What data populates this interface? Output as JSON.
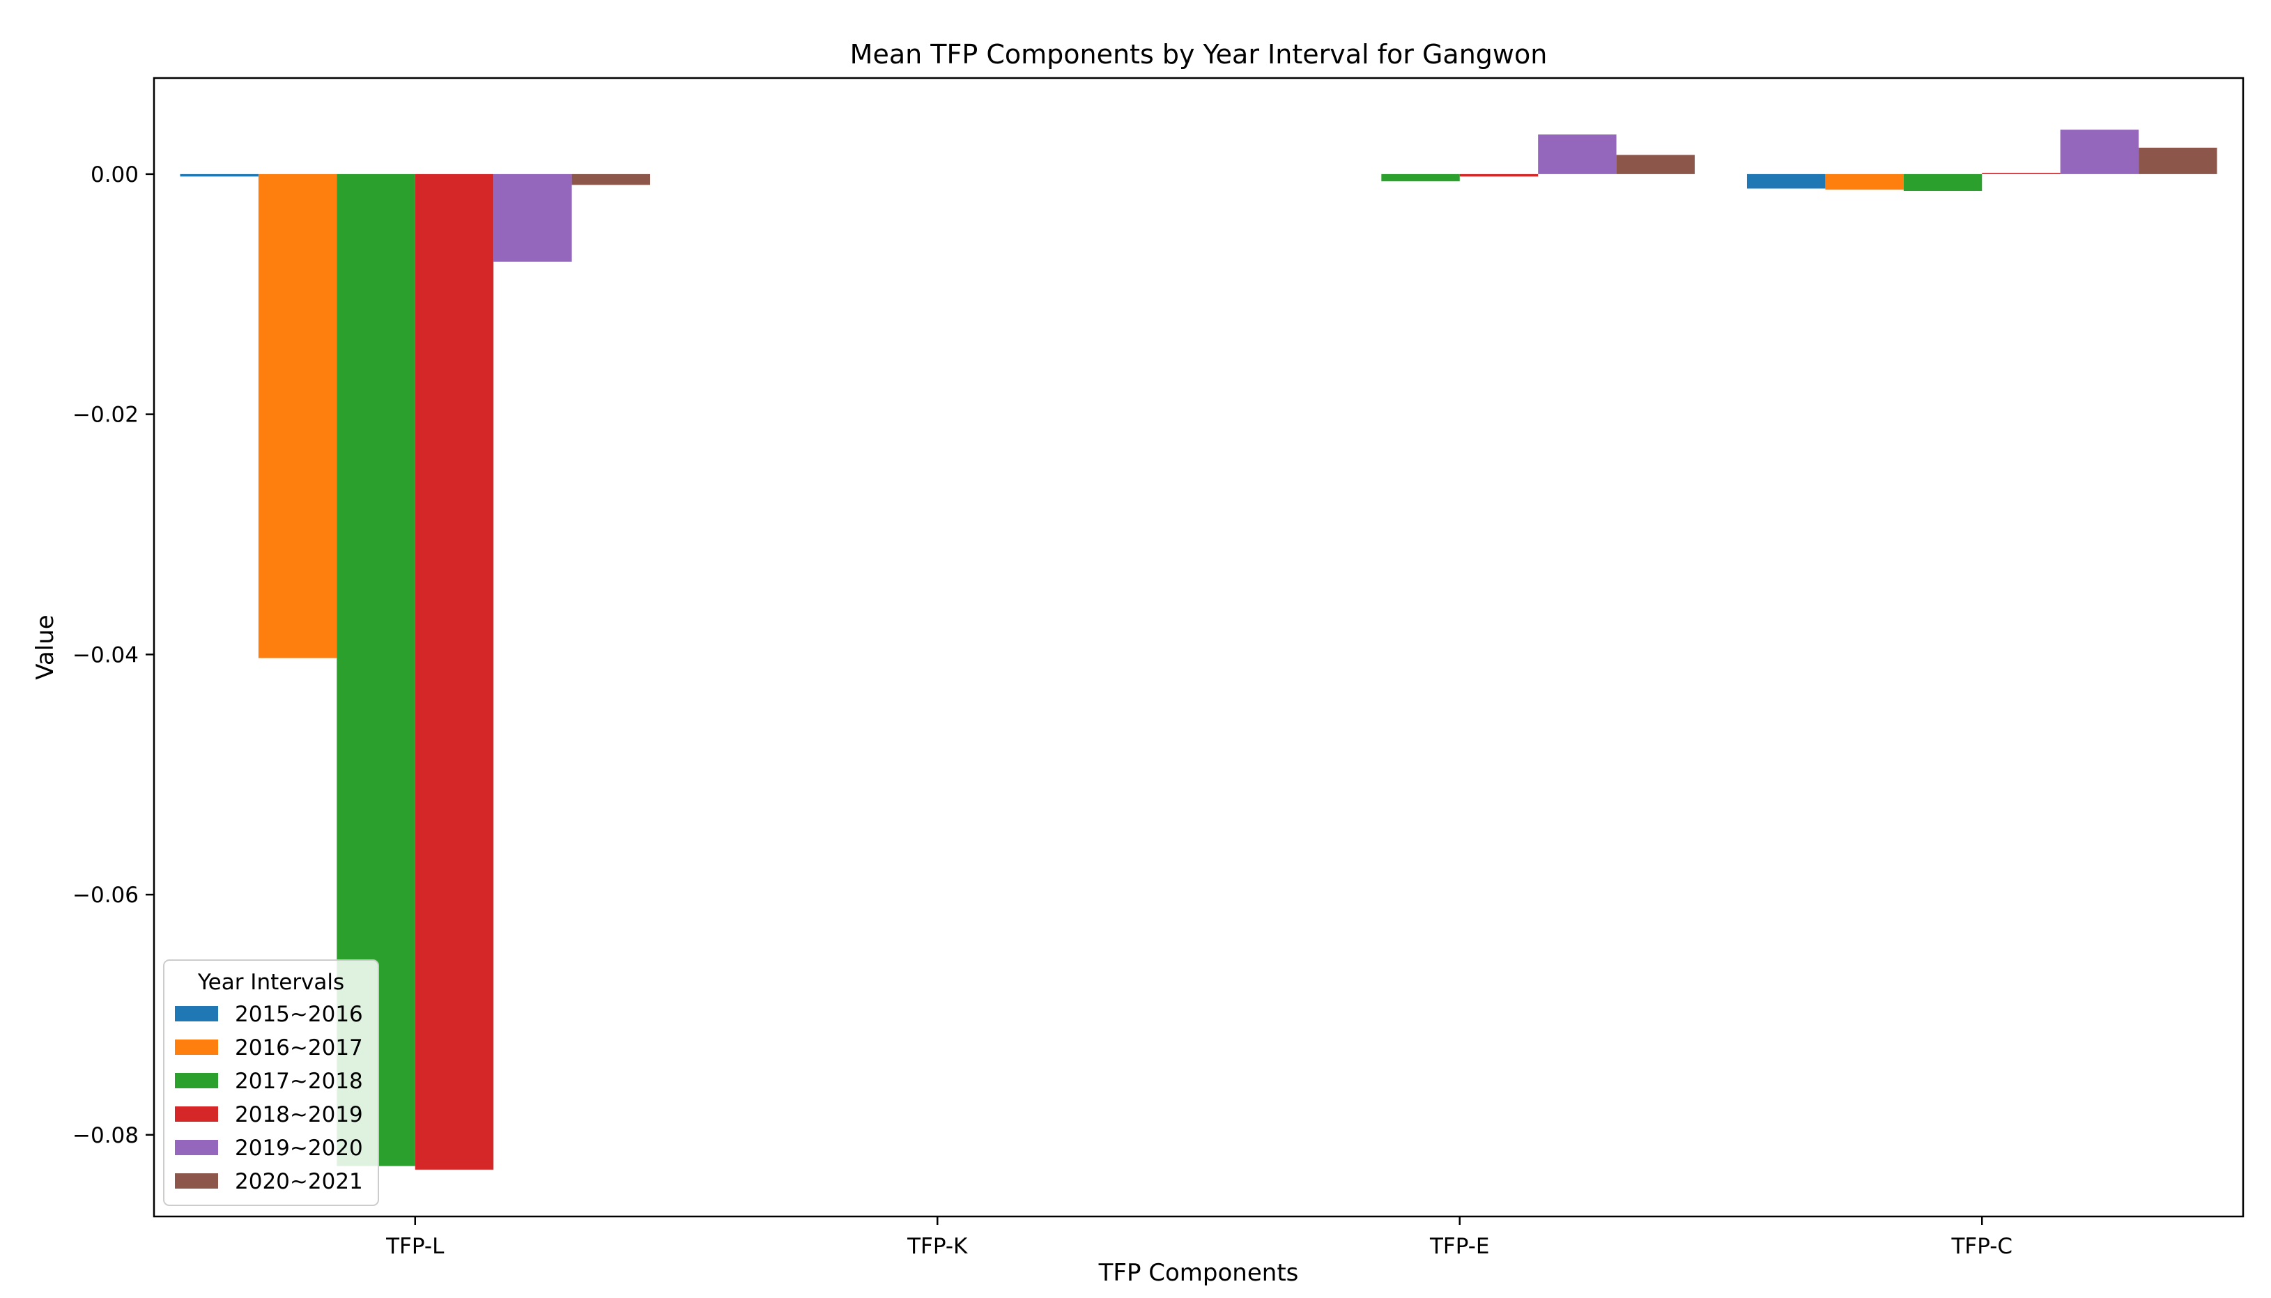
{
  "chart_data": {
    "type": "bar",
    "title": "Mean TFP Components by Year Interval for Gangwon",
    "xlabel": "TFP Components",
    "ylabel": "Value",
    "categories": [
      "TFP-L",
      "TFP-K",
      "TFP-E",
      "TFP-C"
    ],
    "ylim": [
      -0.0868,
      0.008
    ],
    "yticks": [
      0.0,
      -0.02,
      -0.04,
      -0.06,
      -0.08
    ],
    "ytick_labels": [
      "0.00",
      "−0.02",
      "−0.04",
      "−0.06",
      "−0.08"
    ],
    "grid": false,
    "legend": {
      "title": "Year Intervals",
      "placement": "lower-left"
    },
    "series": [
      {
        "name": "2015~2016",
        "color": "#1f77b4",
        "values": [
          -0.0002,
          0.0,
          0.0,
          -0.0012
        ]
      },
      {
        "name": "2016~2017",
        "color": "#ff7f0e",
        "values": [
          -0.0403,
          0.0,
          0.0,
          -0.0013
        ]
      },
      {
        "name": "2017~2018",
        "color": "#2ca02c",
        "values": [
          -0.0826,
          0.0,
          -0.0006,
          -0.0014
        ]
      },
      {
        "name": "2018~2019",
        "color": "#d62728",
        "values": [
          -0.0829,
          0.0,
          -0.0002,
          0.0001
        ]
      },
      {
        "name": "2019~2020",
        "color": "#9467bd",
        "values": [
          -0.0073,
          0.0,
          0.0033,
          0.0037
        ]
      },
      {
        "name": "2020~2021",
        "color": "#8c564b",
        "values": [
          -0.0009,
          0.0,
          0.0016,
          0.0022
        ]
      }
    ]
  }
}
